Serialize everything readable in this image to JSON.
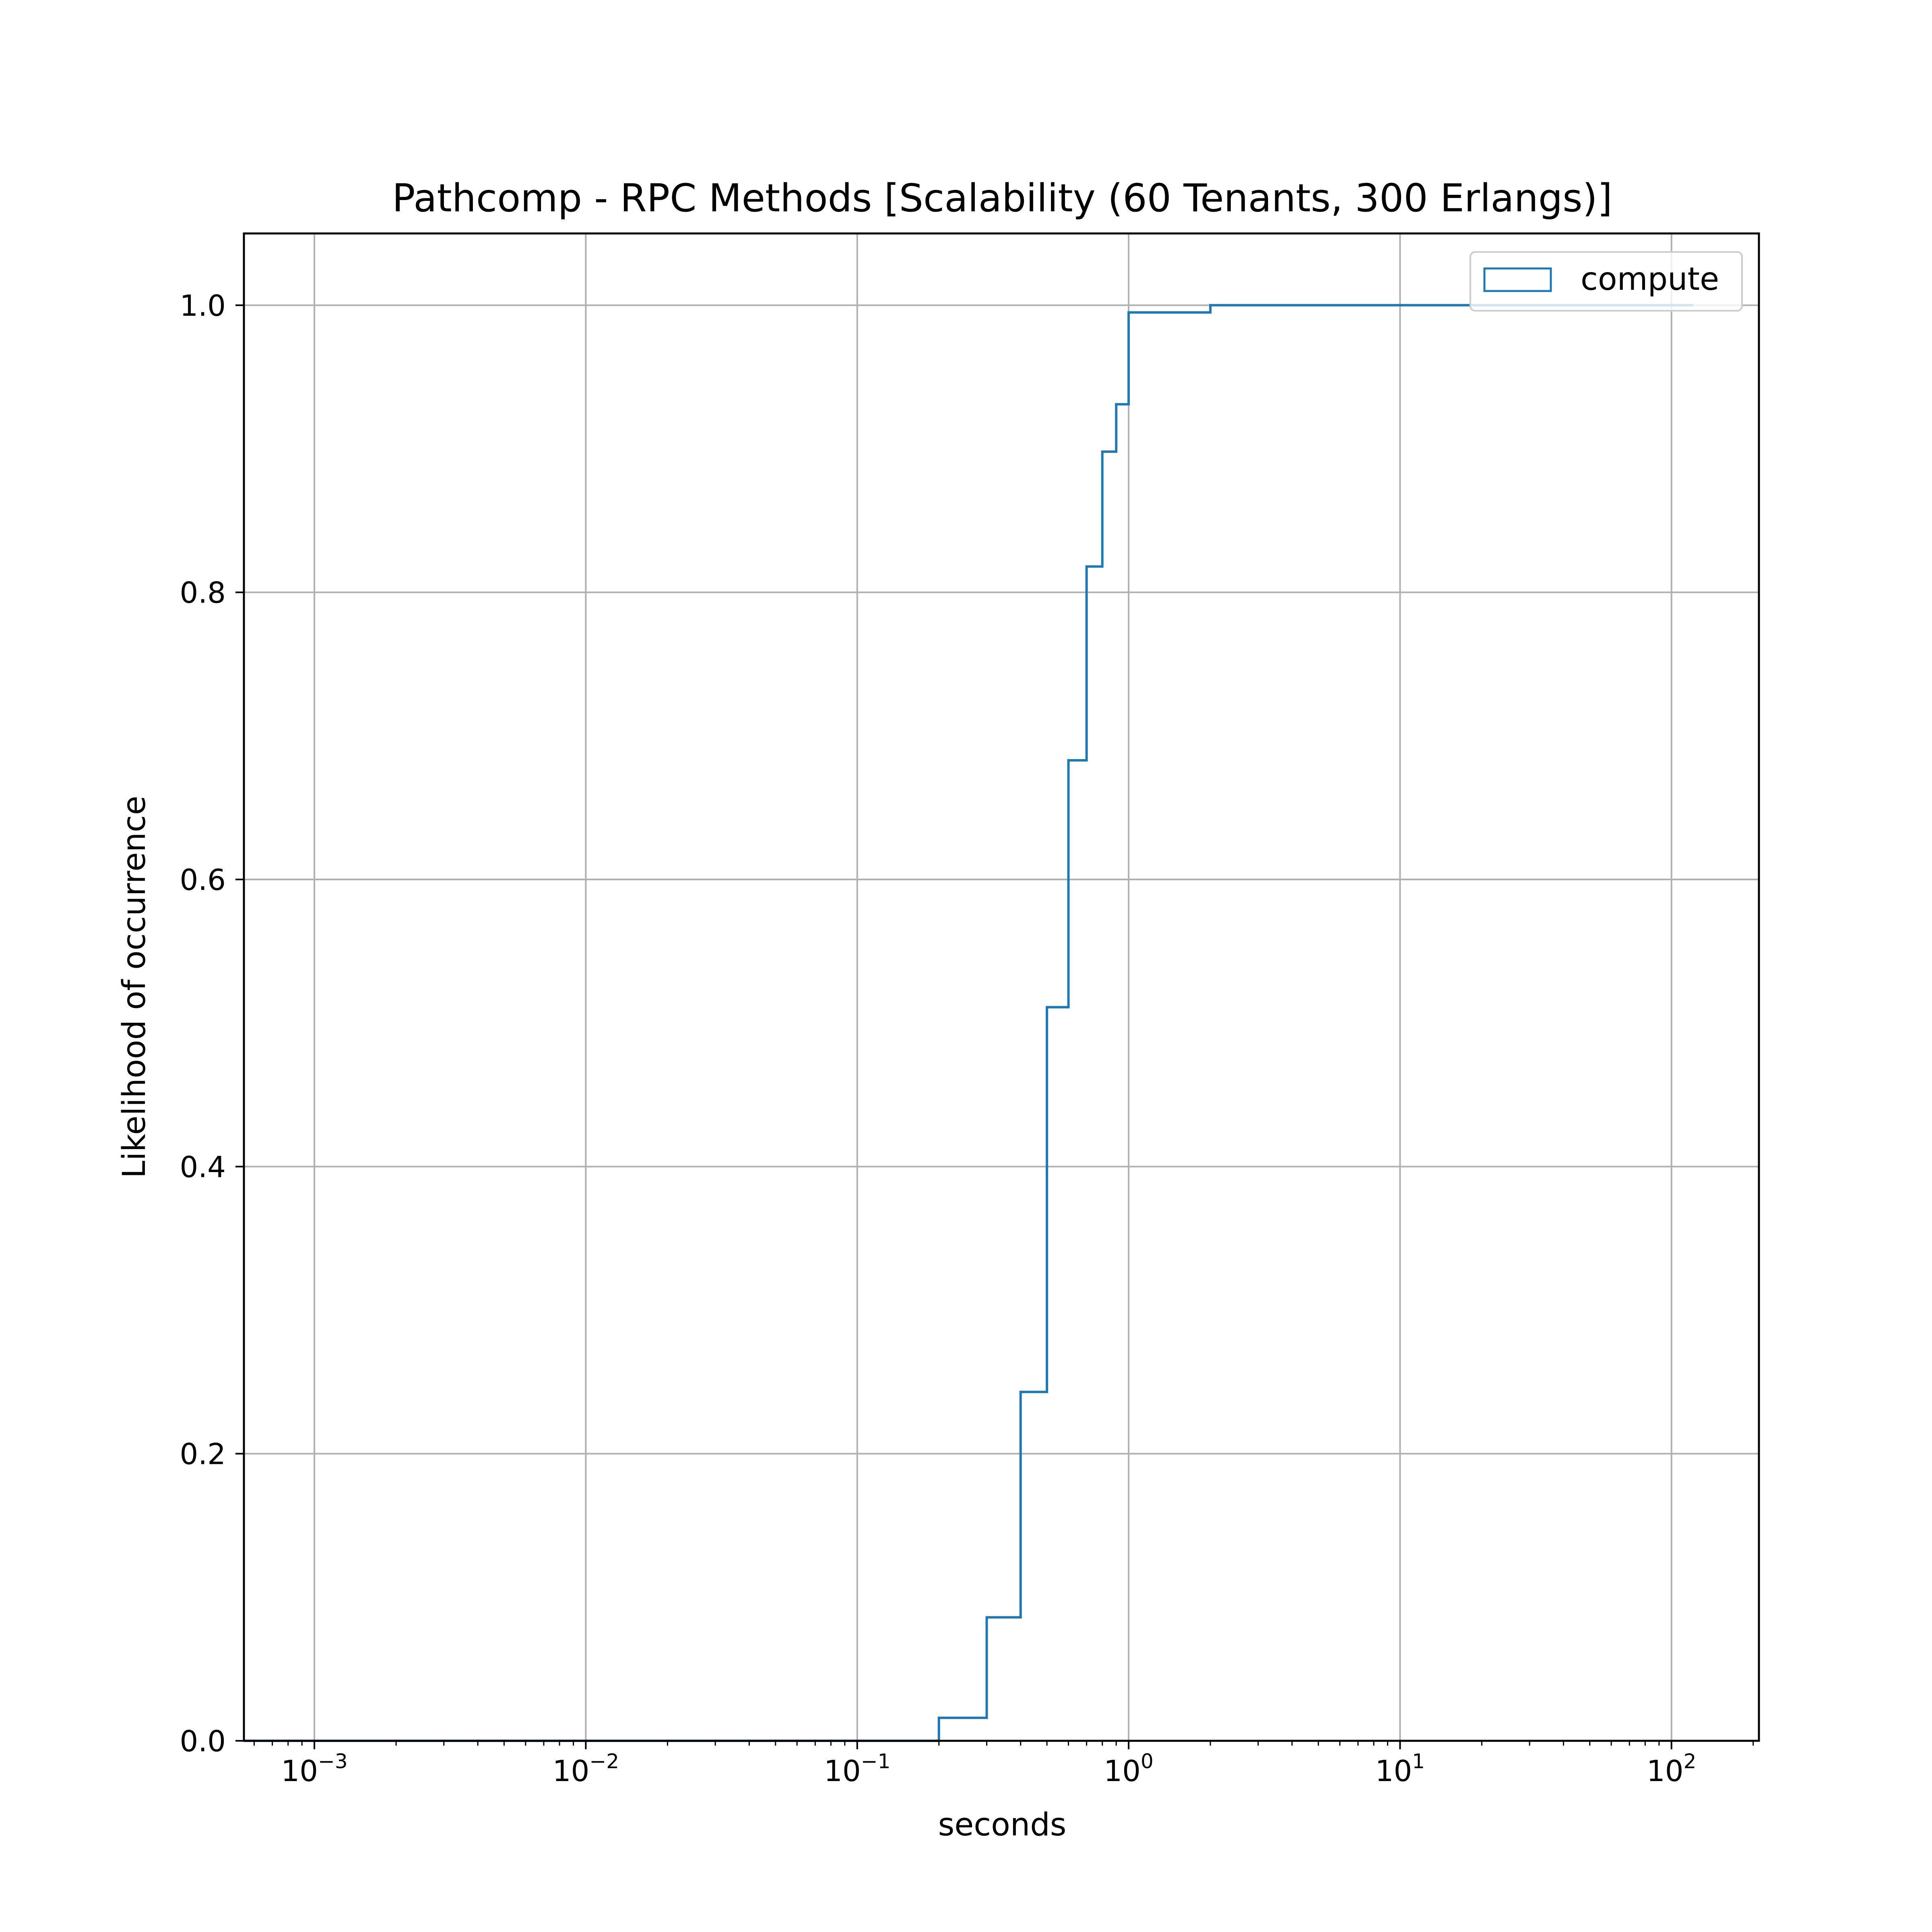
{
  "chart_data": {
    "type": "step",
    "title": "Pathcomp - RPC Methods [Scalability (60 Tenants, 300 Erlangs)]",
    "xlabel": "seconds",
    "ylabel": "Likelihood of occurrence",
    "xscale": "log",
    "xlim": [
      0.00055,
      210
    ],
    "ylim": [
      0,
      1.05
    ],
    "grid": true,
    "legend_position": "top-right",
    "x_ticks": [
      {
        "value": 0.001,
        "base": "10",
        "exp": "−3"
      },
      {
        "value": 0.01,
        "base": "10",
        "exp": "−2"
      },
      {
        "value": 0.1,
        "base": "10",
        "exp": "−1"
      },
      {
        "value": 1,
        "base": "10",
        "exp": "0"
      },
      {
        "value": 10,
        "base": "10",
        "exp": "1"
      },
      {
        "value": 100,
        "base": "10",
        "exp": "2"
      }
    ],
    "y_ticks": [
      {
        "value": 0.0,
        "label": "0.0"
      },
      {
        "value": 0.2,
        "label": "0.2"
      },
      {
        "value": 0.4,
        "label": "0.4"
      },
      {
        "value": 0.6,
        "label": "0.6"
      },
      {
        "value": 0.8,
        "label": "0.8"
      },
      {
        "value": 1.0,
        "label": "1.0"
      }
    ],
    "series": [
      {
        "name": "compute",
        "color": "#1f77b4",
        "bin_edges": [
          0.00055,
          0.2,
          0.3,
          0.4,
          0.5,
          0.6,
          0.7,
          0.8,
          0.9,
          1.0,
          2.0,
          120
        ],
        "cumulative": [
          0.0,
          0.016,
          0.086,
          0.243,
          0.511,
          0.683,
          0.818,
          0.898,
          0.931,
          0.995,
          1.0
        ]
      }
    ]
  }
}
